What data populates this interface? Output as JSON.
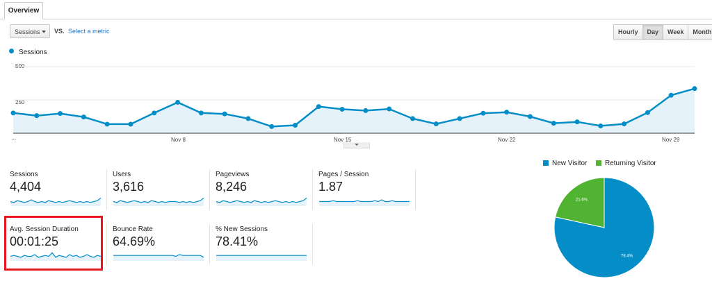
{
  "tabs": {
    "overview": "Overview"
  },
  "metric_selector": {
    "selected": "Sessions",
    "vs_label": "VS.",
    "select_metric_link": "Select a metric"
  },
  "period_buttons": [
    "Hourly",
    "Day",
    "Week",
    "Month"
  ],
  "period_active": "Day",
  "legend": {
    "series_name": "Sessions",
    "series_color": "#058dc7"
  },
  "chart_data": {
    "type": "area",
    "title": "",
    "series_name": "Sessions",
    "y_ticks": [
      "500",
      "250"
    ],
    "ylim": [
      0,
      500
    ],
    "x_tick_labels": [
      "...",
      "Nov 8",
      "Nov 15",
      "Nov 22",
      "Nov 29"
    ],
    "x": [
      "Nov 1",
      "Nov 2",
      "Nov 3",
      "Nov 4",
      "Nov 5",
      "Nov 6",
      "Nov 7",
      "Nov 8",
      "Nov 9",
      "Nov 10",
      "Nov 11",
      "Nov 12",
      "Nov 13",
      "Nov 14",
      "Nov 15",
      "Nov 16",
      "Nov 17",
      "Nov 18",
      "Nov 19",
      "Nov 20",
      "Nov 21",
      "Nov 22",
      "Nov 23",
      "Nov 24",
      "Nov 25",
      "Nov 26",
      "Nov 27",
      "Nov 28",
      "Nov 29",
      "Nov 30"
    ],
    "values": [
      152,
      132,
      148,
      122,
      68,
      68,
      152,
      232,
      152,
      145,
      110,
      50,
      60,
      200,
      180,
      170,
      182,
      110,
      70,
      110,
      150,
      158,
      125,
      75,
      85,
      55,
      70,
      155,
      285,
      335
    ]
  },
  "scorecards": [
    {
      "label": "Sessions",
      "value": "4,404",
      "spark": [
        5,
        4,
        6,
        5,
        4,
        5,
        7,
        5,
        4,
        5,
        4,
        6,
        5,
        4,
        5,
        4,
        5,
        6,
        5,
        4,
        5,
        4,
        5,
        4,
        5,
        6,
        9
      ]
    },
    {
      "label": "Users",
      "value": "3,616",
      "spark": [
        5,
        4,
        6,
        5,
        4,
        5,
        6,
        5,
        4,
        5,
        4,
        6,
        5,
        4,
        5,
        4,
        5,
        5,
        5,
        4,
        5,
        4,
        5,
        4,
        5,
        6,
        9
      ]
    },
    {
      "label": "Pageviews",
      "value": "8,246",
      "spark": [
        5,
        4,
        6,
        5,
        4,
        5,
        6,
        5,
        4,
        5,
        4,
        6,
        5,
        4,
        5,
        4,
        5,
        6,
        5,
        4,
        5,
        4,
        5,
        4,
        5,
        6,
        9
      ]
    },
    {
      "label": "Pages / Session",
      "value": "1.87",
      "spark": [
        5,
        5,
        5,
        5,
        6,
        5,
        5,
        5,
        5,
        5,
        5,
        6,
        5,
        5,
        5,
        5,
        6,
        5,
        7,
        5,
        5,
        6,
        5,
        5,
        5,
        5,
        5
      ]
    },
    {
      "label": "Avg. Session Duration",
      "value": "00:01:25",
      "spark": [
        5,
        6,
        5,
        4,
        6,
        5,
        5,
        7,
        4,
        5,
        6,
        5,
        9,
        4,
        6,
        5,
        4,
        7,
        5,
        6,
        4,
        5,
        7,
        5,
        4,
        6,
        5
      ]
    },
    {
      "label": "Bounce Rate",
      "value": "64.69%",
      "spark": [
        6,
        6,
        6,
        6,
        6,
        6,
        6,
        6,
        6,
        6,
        6,
        6,
        6,
        6,
        6,
        6,
        6,
        6,
        5,
        7,
        6,
        6,
        6,
        6,
        6,
        6,
        4
      ]
    },
    {
      "label": "% New Sessions",
      "value": "78.41%",
      "spark": [
        6,
        6,
        6,
        6,
        6,
        6,
        6,
        6,
        6,
        6,
        6,
        6,
        6,
        6,
        6,
        6,
        6,
        6,
        6,
        6,
        6,
        6,
        6,
        6,
        6,
        6,
        6
      ]
    }
  ],
  "pie": {
    "legend": [
      {
        "label": "New Visitor",
        "color": "#058dc7"
      },
      {
        "label": "Returning Visitor",
        "color": "#50b432"
      }
    ],
    "slices": [
      {
        "label": "78.4%",
        "value": 78.4,
        "color": "#058dc7"
      },
      {
        "label": "21.6%",
        "value": 21.6,
        "color": "#50b432"
      }
    ]
  }
}
